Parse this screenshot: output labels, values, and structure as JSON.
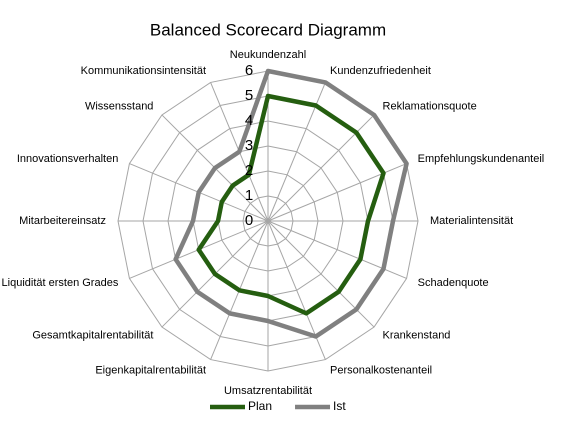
{
  "chart_data": {
    "type": "radar",
    "title": "Balanced Scorecard Diagramm",
    "categories": [
      "Neukundenzahl",
      "Kundenzufriedenheit",
      "Reklamationsquote",
      "Empfehlungskundenanteil",
      "Materialintensität",
      "Schadenquote",
      "Krankenstand",
      "Personalkostenanteil",
      "Umsatzrentabilität",
      "Eigenkapitalrentabilität",
      "Gesamtkapitalrentabilität",
      "Liquidität ersten Grades",
      "Mitarbeitereinsatz",
      "Innovationsverhalten",
      "Wissensstand",
      "Kommunikationsintensität"
    ],
    "series": [
      {
        "name": "Plan",
        "color": "#255e10",
        "values": [
          5,
          5,
          5,
          5,
          4,
          4,
          4,
          4,
          3,
          3,
          3,
          3,
          2,
          2,
          2,
          2
        ]
      },
      {
        "name": "Ist",
        "color": "#808080",
        "values": [
          6,
          6,
          6,
          6,
          5,
          5,
          5,
          5,
          4,
          4,
          4,
          4,
          3,
          3,
          3,
          3
        ]
      }
    ],
    "ylim": [
      0,
      6
    ],
    "yticks": [
      0,
      1,
      2,
      3,
      4,
      5,
      6
    ],
    "grid": true,
    "legend": "bottom"
  }
}
